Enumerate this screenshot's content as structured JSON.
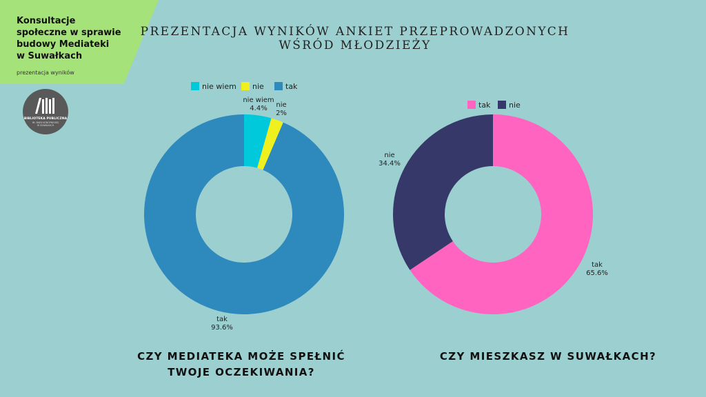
{
  "header": {
    "corner_title": "Konsultacje\nspołeczne w sprawie\nbudowy Mediateki\nw Suwałkach",
    "corner_subtitle": "prezentacja wyników",
    "logo_line1": "BIBLIOTEKA PUBLICZNA",
    "logo_line2": "IM. MARII KONOPNICKIEJ\nW SUWAŁKACH",
    "page_title": "PREZENTACJA WYNIKÓW ANKIET PRZEPROWADZONYCH\nWŚRÓD MŁODZIEŻY"
  },
  "colors": {
    "background": "#9ccfd0",
    "corner": "#a6e27a",
    "logo": "#595959"
  },
  "chart_data": [
    {
      "type": "pie",
      "donut": true,
      "title": "CZY MEDIATEKA MOŻE SPEŁNIĆ\nTWOJE OCZEKIWANIA?",
      "legend_position": "top",
      "slices": [
        {
          "label": "nie wiem",
          "value": 4.4,
          "display": "4.4%",
          "color": "#00c9dc"
        },
        {
          "label": "nie",
          "value": 2,
          "display": "2%",
          "color": "#f0f01e"
        },
        {
          "label": "tak",
          "value": 93.6,
          "display": "93.6%",
          "color": "#2e89bd"
        }
      ]
    },
    {
      "type": "pie",
      "donut": true,
      "title": "CZY MIESZKASZ W SUWAŁKACH?",
      "legend_position": "top",
      "slices": [
        {
          "label": "tak",
          "value": 65.6,
          "display": "65.6%",
          "color": "#ff64c0"
        },
        {
          "label": "nie",
          "value": 34.4,
          "display": "34.4%",
          "color": "#353869"
        }
      ]
    }
  ]
}
